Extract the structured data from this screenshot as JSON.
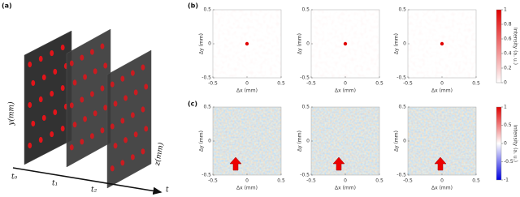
{
  "panel_a": {
    "label": "(a)",
    "y_axis": "y(mm)",
    "z_axis": "z(mm)",
    "time_labels": [
      "t₀",
      "t₁",
      "t₂"
    ],
    "time_axis": "t"
  },
  "panel_b": {
    "label": "(b)",
    "x_label": "Δx (mm)",
    "y_label": "Δy (mm)",
    "x_ticks": [
      -0.5,
      0,
      0.5
    ],
    "y_ticks": [
      -0.5,
      0,
      0.5
    ],
    "colorbar": {
      "label": "Intensity (a. u.)",
      "ticks": [
        0,
        0.2,
        0.4,
        0.6,
        0.8,
        1
      ]
    }
  },
  "panel_c": {
    "label": "(c)",
    "x_label": "Δx (mm)",
    "y_label": "Δy (mm)",
    "x_ticks": [
      -0.5,
      0,
      0.5
    ],
    "y_ticks": [
      -0.5,
      0,
      0.5
    ],
    "colorbar": {
      "label": "Intensity (a. u.)",
      "ticks": [
        -1,
        -0.5,
        0,
        0.5,
        1
      ]
    }
  }
}
